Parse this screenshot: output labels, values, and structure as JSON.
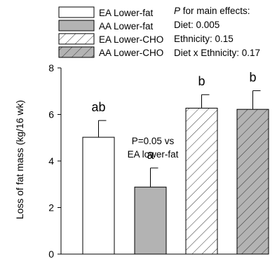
{
  "chart_data": {
    "type": "bar",
    "ylabel": "Loss of fat mass (kg/16 wk)",
    "ylim": [
      0,
      8
    ],
    "yticks": [
      0,
      2,
      4,
      6,
      8
    ],
    "grid": false,
    "legend_position": "top-left",
    "series": [
      {
        "name": "EA Lower-fat",
        "value": 5.02,
        "error": 0.72,
        "letter": "ab",
        "fill": "#ffffff",
        "hatch": false
      },
      {
        "name": "AA Lower-fat",
        "value": 2.88,
        "error": 0.82,
        "letter": "a",
        "fill": "#b3b3b3",
        "hatch": false
      },
      {
        "name": "EA Lower-CHO",
        "value": 6.27,
        "error": 0.58,
        "letter": "b",
        "fill": "#ffffff",
        "hatch": true
      },
      {
        "name": "AA Lower-CHO",
        "value": 6.22,
        "error": 0.8,
        "letter": "b",
        "fill": "#b3b3b3",
        "hatch": true
      }
    ],
    "annotation": {
      "line1": "P=0.05 vs",
      "line2": "EA lower-fat"
    },
    "stats": {
      "title_italic": "P",
      "title_rest": " for main effects:",
      "lines": [
        "Diet: 0.005",
        "Ethnicity: 0.15",
        "Diet x Ethnicity: 0.17"
      ]
    }
  }
}
